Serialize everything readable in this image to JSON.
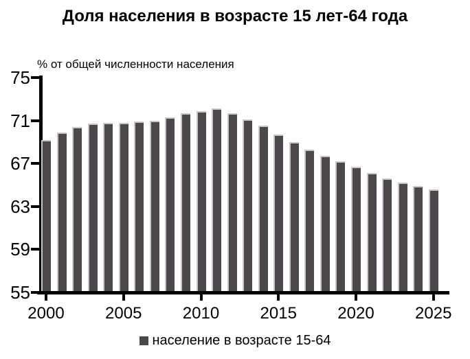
{
  "chart_data": {
    "type": "bar",
    "title": "Доля населения в возрасте 15 лет-64 года",
    "subtitle": "% от общей численности населения",
    "categories": [
      2000,
      2001,
      2002,
      2003,
      2004,
      2005,
      2006,
      2007,
      2008,
      2009,
      2010,
      2011,
      2012,
      2013,
      2014,
      2015,
      2016,
      2017,
      2018,
      2019,
      2020,
      2021,
      2022,
      2023,
      2024,
      2025
    ],
    "values": [
      69.2,
      69.9,
      70.4,
      70.7,
      70.8,
      70.8,
      70.9,
      71.0,
      71.3,
      71.7,
      71.9,
      72.1,
      71.7,
      71.1,
      70.5,
      69.7,
      69.0,
      68.3,
      67.7,
      67.2,
      66.7,
      66.1,
      65.6,
      65.2,
      64.9,
      64.6
    ],
    "xlabel": "",
    "ylabel": "",
    "ylim": [
      55,
      75
    ],
    "y_ticks": [
      55,
      59,
      63,
      67,
      71,
      75
    ],
    "x_tick_labels": [
      "2000",
      "2005",
      "2010",
      "2015",
      "2020",
      "2025"
    ],
    "grid": false,
    "legend_position": "bottom",
    "legend": [
      {
        "label": "население в возрасте 15-64",
        "color": "#4b474b"
      }
    ],
    "colors": {
      "bar_fill": "#4b474b",
      "bar_edge_highlight": "#c8c6c8",
      "axis": "#000000",
      "text": "#000000",
      "background": "#ffffff"
    }
  }
}
